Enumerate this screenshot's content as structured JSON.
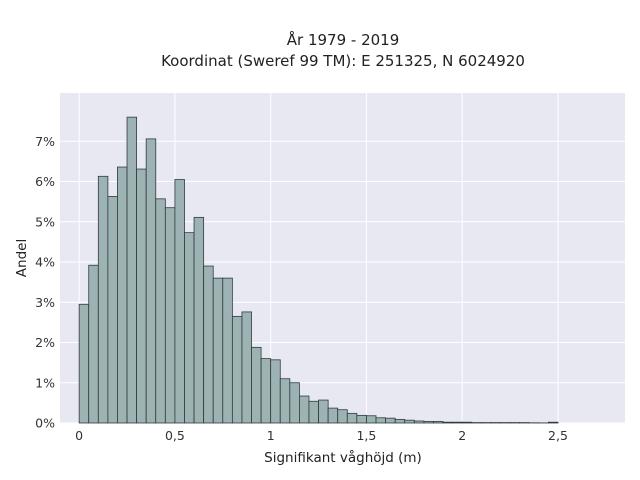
{
  "chart_data": {
    "type": "bar",
    "title": "År 1979 - 2019",
    "subtitle": "Koordinat (Sweref 99 TM): E 251325, N 6024920",
    "xlabel": "Signifikant våghöjd (m)",
    "ylabel": "Andel",
    "bin_width": 0.05,
    "bins_start": [
      0,
      0.05,
      0.1,
      0.15,
      0.2,
      0.25,
      0.3,
      0.35,
      0.4,
      0.45,
      0.5,
      0.55,
      0.6,
      0.65,
      0.7,
      0.75,
      0.8,
      0.85,
      0.9,
      0.95,
      1.0,
      1.05,
      1.1,
      1.15,
      1.2,
      1.25,
      1.3,
      1.35,
      1.4,
      1.45,
      1.5,
      1.55,
      1.6,
      1.65,
      1.7,
      1.75,
      1.8,
      1.85,
      1.9,
      1.95,
      2.0,
      2.05,
      2.1,
      2.15,
      2.2,
      2.25,
      2.3,
      2.35,
      2.4,
      2.45
    ],
    "values": [
      2.95,
      3.92,
      6.13,
      5.63,
      6.36,
      7.6,
      6.31,
      7.06,
      5.57,
      5.35,
      6.05,
      4.73,
      5.11,
      3.9,
      3.6,
      3.6,
      2.65,
      2.76,
      1.88,
      1.6,
      1.57,
      1.1,
      1.0,
      0.67,
      0.54,
      0.57,
      0.37,
      0.33,
      0.24,
      0.19,
      0.18,
      0.13,
      0.12,
      0.09,
      0.07,
      0.05,
      0.04,
      0.04,
      0.02,
      0.02,
      0.02,
      0.01,
      0.01,
      0.01,
      0.01,
      0.01,
      0.01,
      0.005,
      0.003,
      0.02
    ],
    "xlim": [
      -0.1,
      2.85
    ],
    "ylim": [
      0,
      8.2
    ],
    "xticks": [
      0,
      0.5,
      1,
      1.5,
      2,
      2.5
    ],
    "xtick_labels": [
      "0",
      "0,5",
      "1",
      "1,5",
      "2",
      "2,5"
    ],
    "yticks": [
      0,
      1,
      2,
      3,
      4,
      5,
      6,
      7
    ],
    "ytick_labels": [
      "0%",
      "1%",
      "2%",
      "3%",
      "4%",
      "5%",
      "6%",
      "7%"
    ],
    "grid": true,
    "colors": {
      "bar_fill": "#9db3b3",
      "bar_edge": "#2f3b3b",
      "plot_bg": "#e8e8f2",
      "grid": "#ffffff"
    }
  }
}
